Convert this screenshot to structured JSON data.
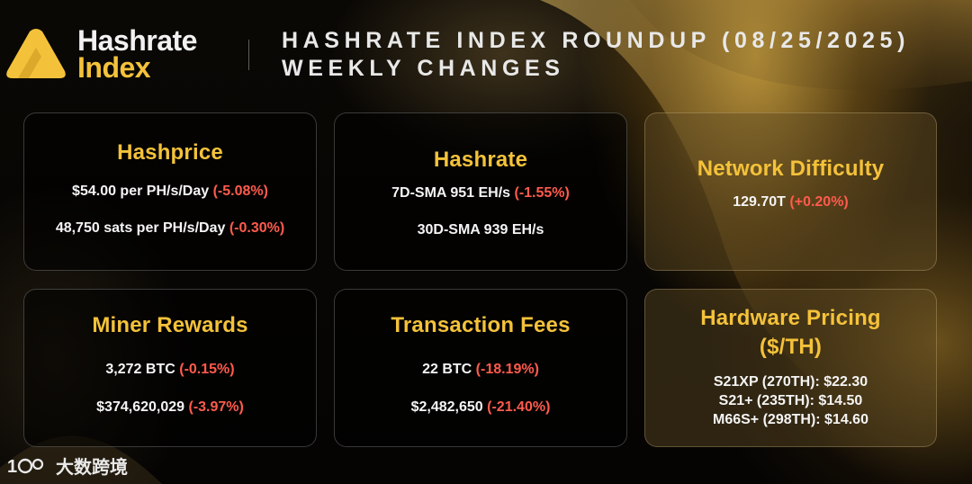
{
  "brand": {
    "line1": "Hashrate",
    "line2": "Index"
  },
  "header": {
    "title": "HASHRATE INDEX ROUNDUP (08/25/2025)",
    "subtitle": "WEEKLY CHANGES"
  },
  "cards": {
    "hashprice": {
      "title": "Hashprice",
      "line1_value": "$54.00 per PH/s/Day",
      "line1_change": "(-5.08%)",
      "line2_value": "48,750 sats per PH/s/Day",
      "line2_change": "(-0.30%)"
    },
    "hashrate": {
      "title": "Hashrate",
      "line1_value": "7D-SMA 951 EH/s",
      "line1_change": "(-1.55%)",
      "line2_value": "30D-SMA 939 EH/s"
    },
    "difficulty": {
      "title": "Network Difficulty",
      "line1_value": "129.70T",
      "line1_change": "(+0.20%)"
    },
    "miner_rewards": {
      "title": "Miner Rewards",
      "line1_value": "3,272 BTC",
      "line1_change": "(-0.15%)",
      "line2_value": "$374,620,029",
      "line2_change": "(-3.97%)"
    },
    "fees": {
      "title": "Transaction Fees",
      "line1_value": "22 BTC",
      "line1_change": "(-18.19%)",
      "line2_value": "$2,482,650",
      "line2_change": "(-21.40%)"
    },
    "hardware": {
      "title_line1": "Hardware Pricing",
      "title_line2": "($/TH)",
      "items": [
        "S21XP (270TH): $22.30",
        "S21+ (235TH): $14.50",
        "M66S+ (298TH): $14.60"
      ]
    }
  },
  "watermark": {
    "text": "大数跨境"
  },
  "colors": {
    "accent": "#f4c23a",
    "negative": "#ff5b4d",
    "background": "#000000"
  }
}
